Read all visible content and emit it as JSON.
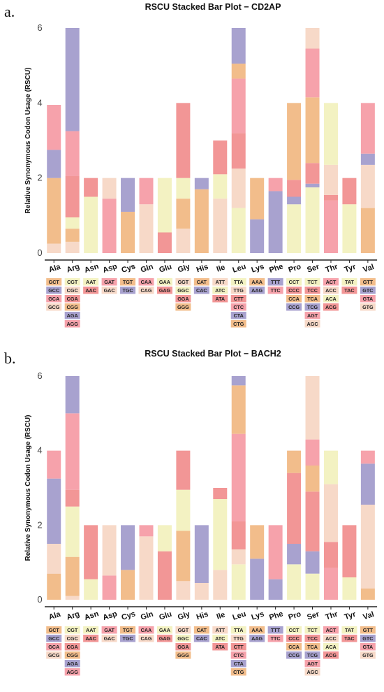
{
  "colors": [
    "#f2bd8b",
    "#f7d9c8",
    "#f6a2ab",
    "#a8a2cf",
    "#f29696",
    "#f3f2c2"
  ],
  "chart_data": [
    {
      "panel": "a.",
      "type": "bar",
      "stacked": true,
      "title": "RSCU Stacked Bar Plot − CD2AP",
      "ylabel": "Relative Synonymous Codon Usage (RSCU)",
      "ylim": [
        0,
        6
      ],
      "yticks": [
        0,
        2,
        4,
        6
      ],
      "categories": [
        "Ala",
        "Arg",
        "Asn",
        "Asp",
        "Cys",
        "Gln",
        "Glu",
        "Gly",
        "His",
        "Ile",
        "Leu",
        "Lys",
        "Phe",
        "Pro",
        "Ser",
        "Thr",
        "Tyr",
        "Val"
      ],
      "groups": [
        {
          "aa": "Ala",
          "codons": [
            "GCT",
            "GCC",
            "GCA",
            "GCG"
          ],
          "color_idx": [
            0,
            3,
            2,
            1
          ],
          "stack": [
            {
              "c": 1,
              "v": 0.25
            },
            {
              "c": 0,
              "v": 1.75
            },
            {
              "c": 3,
              "v": 0.75
            },
            {
              "c": 2,
              "v": 1.2
            }
          ]
        },
        {
          "aa": "Arg",
          "codons": [
            "CGT",
            "CGC",
            "CGA",
            "CGG",
            "AGA",
            "AGG"
          ],
          "color_idx": [
            5,
            1,
            4,
            0,
            3,
            2
          ],
          "stack": [
            {
              "c": 1,
              "v": 0.3
            },
            {
              "c": 0,
              "v": 0.35
            },
            {
              "c": 5,
              "v": 0.3
            },
            {
              "c": 4,
              "v": 1.1
            },
            {
              "c": 2,
              "v": 1.2
            },
            {
              "c": 3,
              "v": 2.75
            }
          ]
        },
        {
          "aa": "Asn",
          "codons": [
            "AAT",
            "AAC"
          ],
          "color_idx": [
            5,
            4
          ],
          "stack": [
            {
              "c": 5,
              "v": 1.5
            },
            {
              "c": 4,
              "v": 0.5
            }
          ]
        },
        {
          "aa": "Asp",
          "codons": [
            "GAT",
            "GAC"
          ],
          "color_idx": [
            2,
            1
          ],
          "stack": [
            {
              "c": 2,
              "v": 1.45
            },
            {
              "c": 1,
              "v": 0.55
            }
          ]
        },
        {
          "aa": "Cys",
          "codons": [
            "TGT",
            "TGC"
          ],
          "color_idx": [
            0,
            3
          ],
          "stack": [
            {
              "c": 0,
              "v": 1.1
            },
            {
              "c": 3,
              "v": 0.9
            }
          ]
        },
        {
          "aa": "Gln",
          "codons": [
            "CAA",
            "CAG"
          ],
          "color_idx": [
            2,
            1
          ],
          "stack": [
            {
              "c": 1,
              "v": 1.3
            },
            {
              "c": 2,
              "v": 0.7
            }
          ]
        },
        {
          "aa": "Glu",
          "codons": [
            "GAA",
            "GAG"
          ],
          "color_idx": [
            5,
            4
          ],
          "stack": [
            {
              "c": 4,
              "v": 0.55
            },
            {
              "c": 5,
              "v": 1.45
            }
          ]
        },
        {
          "aa": "Gly",
          "codons": [
            "GGT",
            "GGC",
            "GGA",
            "GGG"
          ],
          "color_idx": [
            1,
            5,
            4,
            0
          ],
          "stack": [
            {
              "c": 1,
              "v": 0.65
            },
            {
              "c": 0,
              "v": 0.8
            },
            {
              "c": 5,
              "v": 0.55
            },
            {
              "c": 4,
              "v": 2.0
            }
          ]
        },
        {
          "aa": "His",
          "codons": [
            "CAT",
            "CAC"
          ],
          "color_idx": [
            0,
            3
          ],
          "stack": [
            {
              "c": 0,
              "v": 1.7
            },
            {
              "c": 3,
              "v": 0.3
            }
          ]
        },
        {
          "aa": "Ile",
          "codons": [
            "ATT",
            "ATC",
            "ATA"
          ],
          "color_idx": [
            1,
            5,
            4
          ],
          "stack": [
            {
              "c": 1,
              "v": 1.45
            },
            {
              "c": 5,
              "v": 0.65
            },
            {
              "c": 4,
              "v": 0.9
            }
          ]
        },
        {
          "aa": "Leu",
          "codons": [
            "TTA",
            "TTG",
            "CTT",
            "CTC",
            "CTA",
            "CTG"
          ],
          "color_idx": [
            5,
            1,
            4,
            2,
            3,
            0
          ],
          "stack": [
            {
              "c": 5,
              "v": 1.2
            },
            {
              "c": 1,
              "v": 1.05
            },
            {
              "c": 4,
              "v": 0.95
            },
            {
              "c": 2,
              "v": 1.45
            },
            {
              "c": 0,
              "v": 0.4
            },
            {
              "c": 3,
              "v": 0.95
            }
          ]
        },
        {
          "aa": "Lys",
          "codons": [
            "AAA",
            "AAG"
          ],
          "color_idx": [
            0,
            3
          ],
          "stack": [
            {
              "c": 3,
              "v": 0.9
            },
            {
              "c": 0,
              "v": 1.1
            }
          ]
        },
        {
          "aa": "Phe",
          "codons": [
            "TTT",
            "TTC"
          ],
          "color_idx": [
            3,
            2
          ],
          "stack": [
            {
              "c": 3,
              "v": 1.65
            },
            {
              "c": 2,
              "v": 0.35
            }
          ]
        },
        {
          "aa": "Pro",
          "codons": [
            "CCT",
            "CCC",
            "CCA",
            "CCG"
          ],
          "color_idx": [
            5,
            4,
            0,
            3
          ],
          "stack": [
            {
              "c": 5,
              "v": 1.3
            },
            {
              "c": 3,
              "v": 0.2
            },
            {
              "c": 4,
              "v": 0.45
            },
            {
              "c": 0,
              "v": 2.05
            }
          ]
        },
        {
          "aa": "Ser",
          "codons": [
            "TCT",
            "TCC",
            "TCA",
            "TCG",
            "AGT",
            "AGC"
          ],
          "color_idx": [
            5,
            4,
            0,
            3,
            2,
            1
          ],
          "stack": [
            {
              "c": 5,
              "v": 1.75
            },
            {
              "c": 3,
              "v": 0.1
            },
            {
              "c": 4,
              "v": 0.55
            },
            {
              "c": 0,
              "v": 1.75
            },
            {
              "c": 2,
              "v": 1.3
            },
            {
              "c": 1,
              "v": 0.55
            }
          ]
        },
        {
          "aa": "Thr",
          "codons": [
            "ACT",
            "ACC",
            "ACA",
            "ACG"
          ],
          "color_idx": [
            2,
            1,
            5,
            4
          ],
          "stack": [
            {
              "c": 2,
              "v": 1.4
            },
            {
              "c": 4,
              "v": 0.15
            },
            {
              "c": 1,
              "v": 0.8
            },
            {
              "c": 5,
              "v": 1.65
            }
          ]
        },
        {
          "aa": "Tyr",
          "codons": [
            "TAT",
            "TAC"
          ],
          "color_idx": [
            5,
            4
          ],
          "stack": [
            {
              "c": 5,
              "v": 1.3
            },
            {
              "c": 4,
              "v": 0.7
            }
          ]
        },
        {
          "aa": "Val",
          "codons": [
            "GTT",
            "GTC",
            "GTA",
            "GTG"
          ],
          "color_idx": [
            0,
            3,
            2,
            1
          ],
          "stack": [
            {
              "c": 0,
              "v": 1.2
            },
            {
              "c": 1,
              "v": 1.15
            },
            {
              "c": 3,
              "v": 0.3
            },
            {
              "c": 2,
              "v": 1.35
            }
          ]
        }
      ]
    },
    {
      "panel": "b.",
      "type": "bar",
      "stacked": true,
      "title": "RSCU Stacked Bar Plot − BACH2",
      "ylabel": "Relative Synonymous Codon Usage (RSCU)",
      "ylim": [
        0,
        6
      ],
      "yticks": [
        0,
        2,
        4,
        6
      ],
      "categories": [
        "Ala",
        "Arg",
        "Asn",
        "Asp",
        "Cys",
        "Gln",
        "Glu",
        "Gly",
        "His",
        "Ile",
        "Leu",
        "Lys",
        "Phe",
        "Pro",
        "Ser",
        "Thr",
        "Tyr",
        "Val"
      ],
      "groups": [
        {
          "aa": "Ala",
          "codons": [
            "GCT",
            "GCC",
            "GCA",
            "GCG"
          ],
          "color_idx": [
            0,
            3,
            2,
            1
          ],
          "stack": [
            {
              "c": 0,
              "v": 0.7
            },
            {
              "c": 1,
              "v": 0.8
            },
            {
              "c": 3,
              "v": 1.75
            },
            {
              "c": 2,
              "v": 0.75
            }
          ]
        },
        {
          "aa": "Arg",
          "codons": [
            "CGT",
            "CGC",
            "CGA",
            "CGG",
            "AGA",
            "AGG"
          ],
          "color_idx": [
            5,
            1,
            4,
            0,
            3,
            2
          ],
          "stack": [
            {
              "c": 1,
              "v": 0.1
            },
            {
              "c": 0,
              "v": 1.05
            },
            {
              "c": 5,
              "v": 1.35
            },
            {
              "c": 4,
              "v": 0.45
            },
            {
              "c": 2,
              "v": 2.05
            },
            {
              "c": 3,
              "v": 1.0
            }
          ]
        },
        {
          "aa": "Asn",
          "codons": [
            "AAT",
            "AAC"
          ],
          "color_idx": [
            5,
            4
          ],
          "stack": [
            {
              "c": 5,
              "v": 0.55
            },
            {
              "c": 4,
              "v": 1.45
            }
          ]
        },
        {
          "aa": "Asp",
          "codons": [
            "GAT",
            "GAC"
          ],
          "color_idx": [
            2,
            1
          ],
          "stack": [
            {
              "c": 2,
              "v": 0.65
            },
            {
              "c": 1,
              "v": 1.35
            }
          ]
        },
        {
          "aa": "Cys",
          "codons": [
            "TGT",
            "TGC"
          ],
          "color_idx": [
            0,
            3
          ],
          "stack": [
            {
              "c": 0,
              "v": 0.8
            },
            {
              "c": 3,
              "v": 1.2
            }
          ]
        },
        {
          "aa": "Gln",
          "codons": [
            "CAA",
            "CAG"
          ],
          "color_idx": [
            2,
            1
          ],
          "stack": [
            {
              "c": 1,
              "v": 1.7
            },
            {
              "c": 2,
              "v": 0.3
            }
          ]
        },
        {
          "aa": "Glu",
          "codons": [
            "GAA",
            "GAG"
          ],
          "color_idx": [
            5,
            4
          ],
          "stack": [
            {
              "c": 4,
              "v": 1.3
            },
            {
              "c": 5,
              "v": 0.7
            }
          ]
        },
        {
          "aa": "Gly",
          "codons": [
            "GGT",
            "GGC",
            "GGA",
            "GGG"
          ],
          "color_idx": [
            1,
            5,
            4,
            0
          ],
          "stack": [
            {
              "c": 1,
              "v": 0.5
            },
            {
              "c": 0,
              "v": 1.35
            },
            {
              "c": 5,
              "v": 1.1
            },
            {
              "c": 4,
              "v": 1.05
            }
          ]
        },
        {
          "aa": "His",
          "codons": [
            "CAT",
            "CAC"
          ],
          "color_idx": [
            0,
            3
          ],
          "stack": [
            {
              "c": 1,
              "v": 0.45
            },
            {
              "c": 3,
              "v": 1.55
            }
          ]
        },
        {
          "aa": "Ile",
          "codons": [
            "ATT",
            "ATC",
            "ATA"
          ],
          "color_idx": [
            1,
            5,
            4
          ],
          "stack": [
            {
              "c": 1,
              "v": 0.8
            },
            {
              "c": 5,
              "v": 1.9
            },
            {
              "c": 4,
              "v": 0.3
            }
          ]
        },
        {
          "aa": "Leu",
          "codons": [
            "TTA",
            "TTG",
            "CTT",
            "CTC",
            "CTA",
            "CTG"
          ],
          "color_idx": [
            5,
            1,
            4,
            2,
            3,
            0
          ],
          "stack": [
            {
              "c": 5,
              "v": 0.95
            },
            {
              "c": 1,
              "v": 0.4
            },
            {
              "c": 4,
              "v": 0.75
            },
            {
              "c": 2,
              "v": 2.35
            },
            {
              "c": 0,
              "v": 1.3
            },
            {
              "c": 3,
              "v": 0.25
            }
          ]
        },
        {
          "aa": "Lys",
          "codons": [
            "AAA",
            "AAG"
          ],
          "color_idx": [
            0,
            3
          ],
          "stack": [
            {
              "c": 3,
              "v": 1.1
            },
            {
              "c": 0,
              "v": 0.9
            }
          ]
        },
        {
          "aa": "Phe",
          "codons": [
            "TTT",
            "TTC"
          ],
          "color_idx": [
            3,
            2
          ],
          "stack": [
            {
              "c": 3,
              "v": 0.55
            },
            {
              "c": 2,
              "v": 1.45
            }
          ]
        },
        {
          "aa": "Pro",
          "codons": [
            "CCT",
            "CCC",
            "CCA",
            "CCG"
          ],
          "color_idx": [
            5,
            4,
            0,
            3
          ],
          "stack": [
            {
              "c": 5,
              "v": 0.95
            },
            {
              "c": 3,
              "v": 0.55
            },
            {
              "c": 4,
              "v": 1.9
            },
            {
              "c": 0,
              "v": 0.6
            }
          ]
        },
        {
          "aa": "Ser",
          "codons": [
            "TCT",
            "TCC",
            "TCA",
            "TCG",
            "AGT",
            "AGC"
          ],
          "color_idx": [
            5,
            4,
            0,
            3,
            2,
            1
          ],
          "stack": [
            {
              "c": 5,
              "v": 0.7
            },
            {
              "c": 3,
              "v": 0.6
            },
            {
              "c": 4,
              "v": 1.6
            },
            {
              "c": 0,
              "v": 0.7
            },
            {
              "c": 2,
              "v": 0.7
            },
            {
              "c": 1,
              "v": 1.7
            }
          ]
        },
        {
          "aa": "Thr",
          "codons": [
            "ACT",
            "ACC",
            "ACA",
            "ACG"
          ],
          "color_idx": [
            2,
            1,
            5,
            4
          ],
          "stack": [
            {
              "c": 2,
              "v": 0.85
            },
            {
              "c": 4,
              "v": 0.7
            },
            {
              "c": 1,
              "v": 1.55
            },
            {
              "c": 5,
              "v": 0.9
            }
          ]
        },
        {
          "aa": "Tyr",
          "codons": [
            "TAT",
            "TAC"
          ],
          "color_idx": [
            5,
            4
          ],
          "stack": [
            {
              "c": 5,
              "v": 0.6
            },
            {
              "c": 4,
              "v": 1.4
            }
          ]
        },
        {
          "aa": "Val",
          "codons": [
            "GTT",
            "GTC",
            "GTA",
            "GTG"
          ],
          "color_idx": [
            0,
            3,
            2,
            1
          ],
          "stack": [
            {
              "c": 0,
              "v": 0.3
            },
            {
              "c": 1,
              "v": 2.25
            },
            {
              "c": 3,
              "v": 1.1
            },
            {
              "c": 2,
              "v": 0.35
            }
          ]
        }
      ]
    }
  ]
}
